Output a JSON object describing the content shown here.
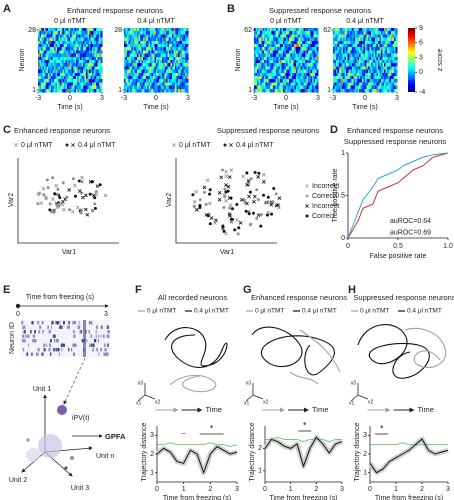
{
  "A": {
    "label": "A",
    "title": "Enhanced response neurons",
    "conditions": [
      "0 μl nTMT",
      "0.4 μl nTMT"
    ],
    "ylabel": "Neuron",
    "yticks": [
      1,
      28
    ],
    "xticks": [
      -3,
      0,
      3
    ],
    "xlabel": "Time (s)"
  },
  "B": {
    "label": "B",
    "title": "Suppressed response neurons",
    "conditions": [
      "0 μl nTMT",
      "0.4 μl nTMT"
    ],
    "ylabel": "Neuron",
    "yticks": [
      1,
      62
    ],
    "xticks": [
      -3,
      0,
      3
    ],
    "xlabel": "Time (s)",
    "colorbar": {
      "label": "z score",
      "lim": [
        -4,
        9
      ],
      "ticks": [
        -4,
        0,
        3,
        6,
        9
      ]
    }
  },
  "C": {
    "label": "C",
    "left_title": "Enhanced response neurons",
    "right_title": "Suppressed response neurons",
    "conditions": [
      "0 μl nTMT",
      "0.4 μl nTMT"
    ],
    "xlabel": "Var1",
    "ylabel": "Var2",
    "legend": [
      "Incorrect",
      "Correct",
      "Incorrect",
      "Correct"
    ]
  },
  "D": {
    "label": "D",
    "type": "line",
    "titles": [
      "Enhanced response neurons",
      "Suppressed response neurons"
    ],
    "xlabel": "False positive rate",
    "ylabel": "True positive rate",
    "xlim": [
      0,
      1
    ],
    "ylim": [
      0,
      1
    ],
    "xticks": [
      0,
      0.5,
      {
        "value": 1,
        "label": "1.0"
      }
    ],
    "yticks": [
      0,
      0.5,
      1
    ],
    "x": [
      0,
      0.05,
      0.1,
      0.15,
      0.25,
      0.3,
      0.4,
      0.5,
      0.55,
      0.65,
      0.75,
      0.85,
      1
    ],
    "series": [
      {
        "name": "auROC=0.64",
        "color": "#c8323a",
        "values": [
          0,
          0.1,
          0.2,
          0.35,
          0.4,
          0.55,
          0.6,
          0.65,
          0.7,
          0.8,
          0.85,
          0.95,
          1
        ]
      },
      {
        "name": "auROC=0.69",
        "color": "#2aa5c8",
        "values": [
          0,
          0.15,
          0.3,
          0.45,
          0.6,
          0.7,
          0.75,
          0.8,
          0.85,
          0.9,
          0.95,
          0.98,
          1
        ]
      }
    ]
  },
  "E": {
    "label": "E",
    "time_label": "Time from freezing (s)",
    "time_ticks": [
      0,
      3
    ],
    "ylabel": "Neuron ID",
    "pv_label": "iPV(t)",
    "method": "GPFA",
    "units": [
      "Unit 1",
      "Unit 2",
      "Unit 3",
      "Unit n"
    ]
  },
  "F": {
    "label": "F",
    "title": "All recorded neurons",
    "conditions": [
      "0 μl nTMT",
      "0.4 μl nTMT"
    ],
    "axes_labels": [
      "x3",
      "x1",
      "x2"
    ],
    "time_label": "Time",
    "ylabel": "Trajectory distance",
    "xlabel": "Time from freezing (s)",
    "xlim": [
      0,
      3
    ],
    "ylim": [
      0.5,
      3.5
    ],
    "xticks": [
      0,
      1,
      2,
      3
    ],
    "yticks": [
      1,
      2,
      3
    ],
    "marks": [
      "–",
      "*"
    ],
    "x": [
      0,
      0.25,
      0.5,
      0.75,
      1,
      1.25,
      1.5,
      1.75,
      2,
      2.25,
      2.5,
      2.75,
      3
    ],
    "series": [
      {
        "color": "#7dc47d",
        "values": [
          2.5,
          2.5,
          2.6,
          2.5,
          2.5,
          2.5,
          2.5,
          2.5,
          2.6,
          2.5,
          2.5,
          2.4,
          2.5
        ]
      },
      {
        "color": "#111111",
        "values": [
          2.0,
          2.3,
          2.1,
          1.6,
          1.5,
          2.2,
          2.0,
          1.0,
          2.0,
          2.4,
          2.2,
          2.0,
          2.1
        ]
      }
    ]
  },
  "G": {
    "label": "G",
    "title": "Enhanced response neurons",
    "conditions": [
      "0 μl nTMT",
      "0.4 μl nTMT"
    ],
    "axes_labels": [
      "x3",
      "x1",
      "x2"
    ],
    "time_label": "Time",
    "ylabel": "Trajectory distance",
    "xlabel": "Time from freezing (s)",
    "xlim": [
      0,
      3
    ],
    "ylim": [
      0.5,
      3
    ],
    "xticks": [
      0,
      1,
      2,
      3
    ],
    "yticks": [
      1,
      2
    ],
    "marks": [
      "*"
    ],
    "x": [
      0,
      0.25,
      0.5,
      0.75,
      1,
      1.25,
      1.5,
      1.75,
      2,
      2.25,
      2.5,
      2.75,
      3
    ],
    "series": [
      {
        "color": "#7dc47d",
        "values": [
          2.4,
          2.4,
          2.5,
          2.4,
          2.4,
          2.4,
          2.3,
          2.4,
          2.4,
          2.4,
          2.3,
          2.4,
          2.4
        ]
      },
      {
        "color": "#111111",
        "values": [
          2.0,
          2.4,
          2.3,
          2.1,
          2.0,
          2.2,
          1.2,
          2.0,
          2.5,
          2.2,
          1.8,
          2.2,
          2.3
        ]
      }
    ]
  },
  "H": {
    "label": "H",
    "title": "Suppressed response neurons",
    "conditions": [
      "0 μl nTMT",
      "0.4 μl nTMT"
    ],
    "axes_labels": [
      "x3",
      "x1",
      "x2"
    ],
    "time_label": "Time",
    "ylabel": "Trajectory distance",
    "xlabel": "Time from freezing (s)",
    "xlim": [
      0,
      3
    ],
    "ylim": [
      0.5,
      3.5
    ],
    "xticks": [
      0,
      1,
      2,
      3
    ],
    "yticks": [
      1,
      2,
      3
    ],
    "marks": [
      "*"
    ],
    "x": [
      0,
      0.25,
      0.5,
      0.75,
      1,
      1.25,
      1.5,
      1.75,
      2,
      2.25,
      2.5,
      2.75,
      3
    ],
    "series": [
      {
        "color": "#7dc47d",
        "values": [
          2.5,
          2.5,
          2.5,
          2.5,
          2.5,
          2.6,
          2.5,
          2.5,
          2.5,
          2.5,
          2.5,
          2.5,
          2.5
        ]
      },
      {
        "color": "#111111",
        "values": [
          1.5,
          1.0,
          1.2,
          1.6,
          1.8,
          2.0,
          2.2,
          2.5,
          2.8,
          2.2,
          2.0,
          2.1,
          2.2
        ]
      }
    ]
  }
}
